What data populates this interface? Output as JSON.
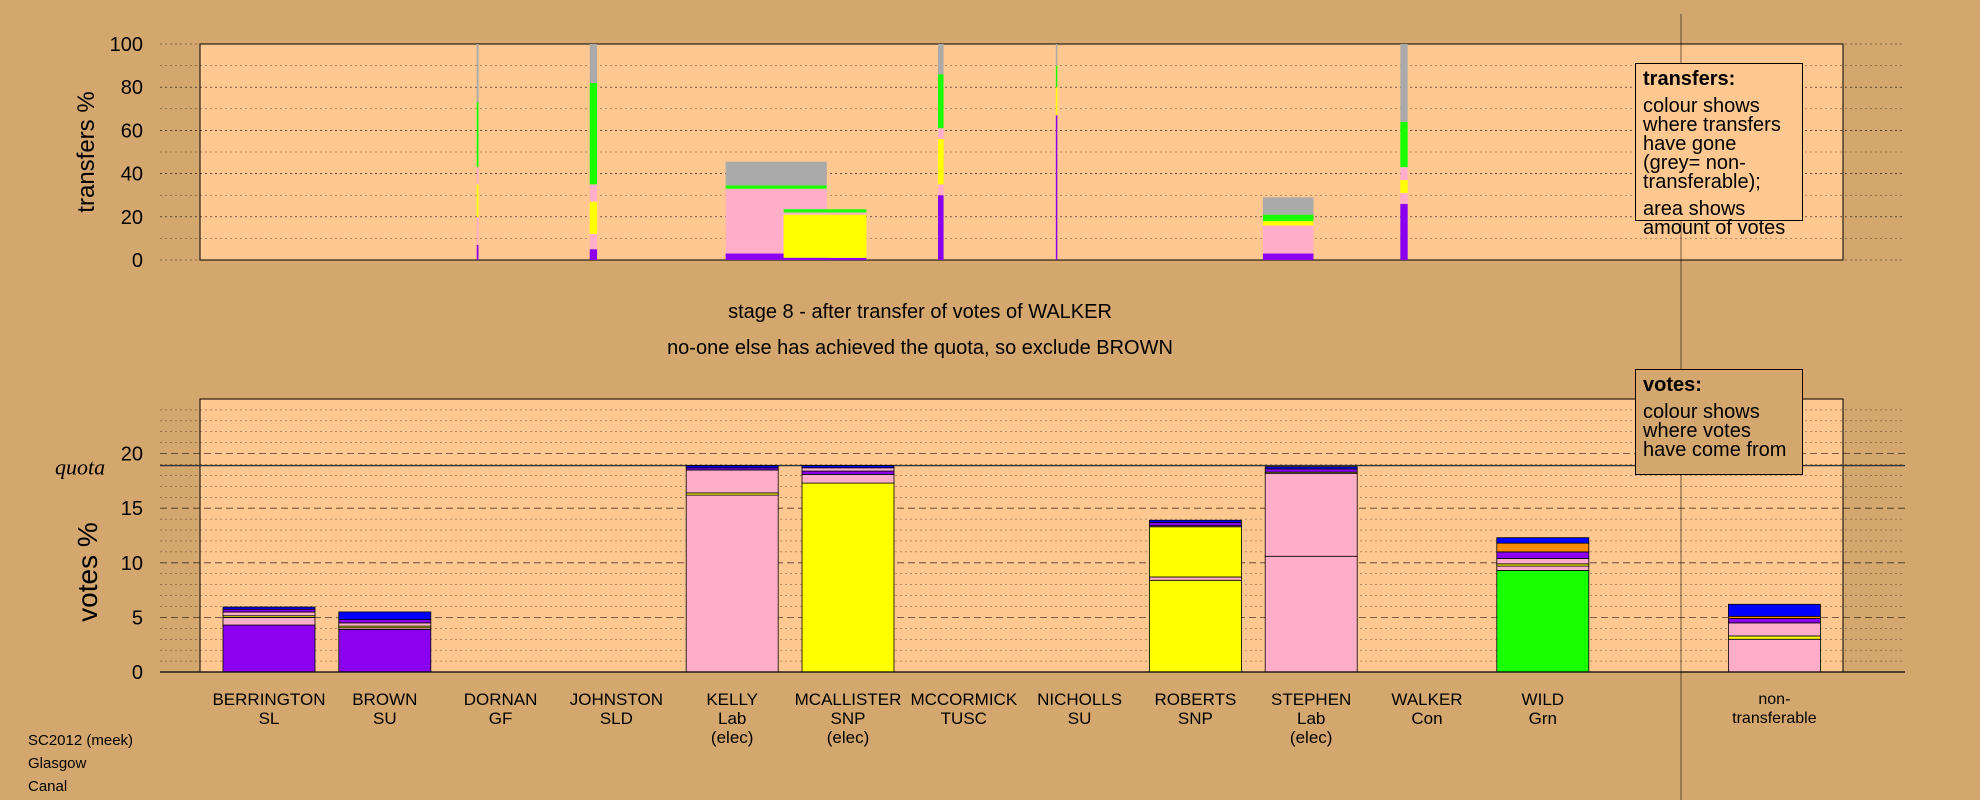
{
  "page": {
    "stage_line": "stage 8 - after transfer of votes of WALKER",
    "status_line": "no-one else has achieved the quota, so exclude BROWN",
    "footer": [
      "SC2012 (meek)",
      "Glasgow",
      "Canal"
    ]
  },
  "legends": {
    "transfers": {
      "title": "transfers:",
      "line1": "colour shows where transfers have gone (grey= non-transferable);",
      "line2": "area shows amount of votes"
    },
    "votes": {
      "title": "votes:",
      "line1": "colour shows where votes have come from"
    }
  },
  "colors": {
    "SL": "#8b00ee",
    "SU": "#8b00ee",
    "SNP": "#ffff00",
    "Lab": "#ffaec9",
    "Grn": "#1aff00",
    "Con": "#0000ff",
    "GF": "#ff8c00",
    "SLD": "#ffa500",
    "TUSC": "#ff0000",
    "nontransferable": "#aaaaaa",
    "background_panel": "#ffc890",
    "page": "#d4a76f"
  },
  "chart_data": [
    {
      "type": "bar",
      "title": "",
      "ylabel": "transfers %",
      "ylim": [
        0,
        100
      ],
      "yticks": [
        0,
        20,
        40,
        60,
        80,
        100
      ],
      "categories": [
        "BERRINGTON",
        "BROWN",
        "DORNAN",
        "JOHNSTON",
        "KELLY",
        "MCALLISTER",
        "MCCORMICK",
        "NICHOLLS",
        "ROBERTS",
        "STEPHEN",
        "WALKER",
        "WILD"
      ],
      "columns": [
        {
          "candidate": "DORNAN",
          "width": 0.02,
          "stack": [
            {
              "party": "SL",
              "value": 7
            },
            {
              "party": "Lab",
              "value": 13
            },
            {
              "party": "SNP",
              "value": 15
            },
            {
              "party": "Lab",
              "value": 8
            },
            {
              "party": "Grn",
              "value": 30
            },
            {
              "party": "nontransferable",
              "value": 27
            }
          ]
        },
        {
          "candidate": "JOHNSTON",
          "width": 0.08,
          "stack": [
            {
              "party": "SL",
              "value": 5
            },
            {
              "party": "Lab",
              "value": 7
            },
            {
              "party": "SNP",
              "value": 15
            },
            {
              "party": "Lab",
              "value": 8
            },
            {
              "party": "Grn",
              "value": 47
            },
            {
              "party": "nontransferable",
              "value": 18
            }
          ]
        },
        {
          "candidate": "KELLY",
          "width": 1.1,
          "stack": [
            {
              "party": "SL",
              "value": 3
            },
            {
              "party": "Lab",
              "value": 4
            },
            {
              "party": "Lab",
              "value": 26
            },
            {
              "party": "Grn",
              "value": 1.5
            },
            {
              "party": "nontransferable",
              "value": 11
            }
          ]
        },
        {
          "candidate": "MCALLISTER",
          "width": 0.9,
          "stack": [
            {
              "party": "SL",
              "value": 1
            },
            {
              "party": "SNP",
              "value": 20
            },
            {
              "party": "Lab",
              "value": 1
            },
            {
              "party": "Grn",
              "value": 1.5
            }
          ]
        },
        {
          "candidate": "MCCORMICK",
          "width": 0.06,
          "stack": [
            {
              "party": "SL",
              "value": 30
            },
            {
              "party": "Lab",
              "value": 5
            },
            {
              "party": "SNP",
              "value": 21
            },
            {
              "party": "Lab",
              "value": 5
            },
            {
              "party": "Grn",
              "value": 25
            },
            {
              "party": "nontransferable",
              "value": 14
            }
          ]
        },
        {
          "candidate": "NICHOLLS",
          "width": 0.015,
          "stack": [
            {
              "party": "SL",
              "value": 67
            },
            {
              "party": "SNP",
              "value": 13
            },
            {
              "party": "Grn",
              "value": 10
            },
            {
              "party": "nontransferable",
              "value": 10
            }
          ]
        },
        {
          "candidate": "STEPHEN",
          "width": 0.55,
          "stack": [
            {
              "party": "SL",
              "value": 3
            },
            {
              "party": "Lab",
              "value": 13
            },
            {
              "party": "SNP",
              "value": 2
            },
            {
              "party": "Grn",
              "value": 3
            },
            {
              "party": "nontransferable",
              "value": 8
            }
          ]
        },
        {
          "candidate": "WALKER",
          "width": 0.08,
          "stack": [
            {
              "party": "SL",
              "value": 26
            },
            {
              "party": "Lab",
              "value": 5
            },
            {
              "party": "SNP",
              "value": 6
            },
            {
              "party": "Lab",
              "value": 6
            },
            {
              "party": "Grn",
              "value": 21
            },
            {
              "party": "nontransferable",
              "value": 36
            }
          ]
        }
      ]
    },
    {
      "type": "bar",
      "title": "",
      "ylabel": "votes %",
      "ylim": [
        0,
        25
      ],
      "yticks": [
        0,
        5,
        10,
        15,
        20
      ],
      "quota": 18.9,
      "quota_label": "quota",
      "categories": [
        "BERRINGTON\nSL",
        "BROWN\nSU",
        "DORNAN\nGF",
        "JOHNSTON\nSLD",
        "KELLY\nLab\n(elec)",
        "MCALLISTER\nSNP\n(elec)",
        "MCCORMICK\nTUSC",
        "NICHOLLS\nSU",
        "ROBERTS\nSNP",
        "STEPHEN\nLab\n(elec)",
        "WALKER\nCon",
        "WILD\nGrn",
        "",
        "non-\ntransferable"
      ],
      "bars": [
        {
          "candidate": "BERRINGTON",
          "stack": [
            {
              "party": "SL",
              "value": 4.3
            },
            {
              "party": "Lab",
              "value": 0.7
            },
            {
              "party": "SNP",
              "value": 0.15
            },
            {
              "party": "Lab",
              "value": 0.35
            },
            {
              "party": "SL",
              "value": 0.25
            },
            {
              "party": "Con",
              "value": 0.2
            }
          ]
        },
        {
          "candidate": "BROWN",
          "stack": [
            {
              "party": "SU",
              "value": 3.9
            },
            {
              "party": "Lab",
              "value": 0.15
            },
            {
              "party": "SNP",
              "value": 0.15
            },
            {
              "party": "Lab",
              "value": 0.3
            },
            {
              "party": "SL",
              "value": 0.3
            },
            {
              "party": "Con",
              "value": 0.7
            }
          ]
        },
        {
          "candidate": "DORNAN",
          "stack": []
        },
        {
          "candidate": "JOHNSTON",
          "stack": []
        },
        {
          "candidate": "KELLY",
          "stack": [
            {
              "party": "Lab",
              "value": 16.2
            },
            {
              "party": "SNP",
              "value": 0.2
            },
            {
              "party": "Lab",
              "value": 2.1
            },
            {
              "party": "SL",
              "value": 0.2
            },
            {
              "party": "Con",
              "value": 0.2
            }
          ]
        },
        {
          "candidate": "MCALLISTER",
          "stack": [
            {
              "party": "SNP",
              "value": 17.3
            },
            {
              "party": "Lab",
              "value": 0.8
            },
            {
              "party": "SL",
              "value": 0.3
            },
            {
              "party": "Lab",
              "value": 0.3
            },
            {
              "party": "Con",
              "value": 0.2
            }
          ]
        },
        {
          "candidate": "MCCORMICK",
          "stack": []
        },
        {
          "candidate": "NICHOLLS",
          "stack": []
        },
        {
          "candidate": "ROBERTS",
          "stack": [
            {
              "party": "SNP",
              "value": 8.4
            },
            {
              "party": "Lab",
              "value": 0.3
            },
            {
              "party": "SNP",
              "value": 4.6
            },
            {
              "party": "Lab",
              "value": 0.1
            },
            {
              "party": "SL",
              "value": 0.3
            },
            {
              "party": "Con",
              "value": 0.2
            }
          ]
        },
        {
          "candidate": "STEPHEN",
          "stack": [
            {
              "party": "Lab",
              "value": 10.6
            },
            {
              "party": "Lab",
              "value": 7.6
            },
            {
              "party": "SNP",
              "value": 0.1
            },
            {
              "party": "SL",
              "value": 0.3
            },
            {
              "party": "Con",
              "value": 0.2
            }
          ]
        },
        {
          "candidate": "WALKER",
          "stack": []
        },
        {
          "candidate": "WILD",
          "stack": [
            {
              "party": "Grn",
              "value": 9.3
            },
            {
              "party": "Lab",
              "value": 0.4
            },
            {
              "party": "SNP",
              "value": 0.2
            },
            {
              "party": "Lab",
              "value": 0.5
            },
            {
              "party": "SL",
              "value": 0.6
            },
            {
              "party": "GF",
              "value": 0.8
            },
            {
              "party": "Con",
              "value": 0.5
            }
          ]
        },
        {
          "candidate": "",
          "stack": []
        },
        {
          "candidate": "non-transferable",
          "stack": [
            {
              "party": "Lab",
              "value": 3.0
            },
            {
              "party": "SNP",
              "value": 0.3
            },
            {
              "party": "Lab",
              "value": 1.2
            },
            {
              "party": "SL",
              "value": 0.4
            },
            {
              "party": "GF",
              "value": 0.2
            },
            {
              "party": "Con",
              "value": 1.1
            }
          ]
        }
      ]
    }
  ]
}
